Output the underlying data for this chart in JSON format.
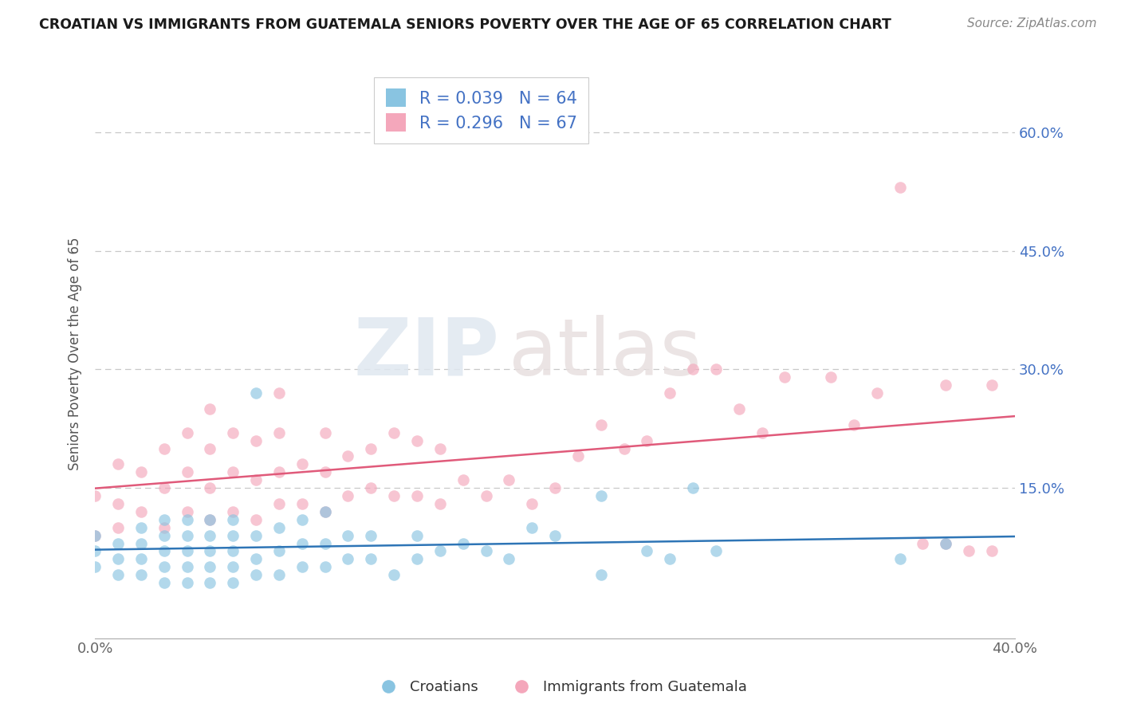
{
  "title": "CROATIAN VS IMMIGRANTS FROM GUATEMALA SENIORS POVERTY OVER THE AGE OF 65 CORRELATION CHART",
  "source": "Source: ZipAtlas.com",
  "ylabel": "Seniors Poverty Over the Age of 65",
  "ytick_vals": [
    0.0,
    0.15,
    0.3,
    0.45,
    0.6
  ],
  "ytick_labels": [
    "",
    "15.0%",
    "30.0%",
    "45.0%",
    "60.0%"
  ],
  "xlim": [
    0.0,
    0.4
  ],
  "ylim": [
    -0.04,
    0.68
  ],
  "blue_color": "#89c4e1",
  "pink_color": "#f4a7bb",
  "blue_line_color": "#2e75b6",
  "pink_line_color": "#e05a7a",
  "R_blue": 0.039,
  "N_blue": 64,
  "R_pink": 0.296,
  "N_pink": 67,
  "legend_label_blue": "Croatians",
  "legend_label_pink": "Immigrants from Guatemala",
  "watermark_top": "ZIP",
  "watermark_bot": "atlas",
  "background_color": "#ffffff",
  "blue_scatter_x": [
    0.0,
    0.0,
    0.0,
    0.01,
    0.01,
    0.01,
    0.02,
    0.02,
    0.02,
    0.02,
    0.03,
    0.03,
    0.03,
    0.03,
    0.03,
    0.04,
    0.04,
    0.04,
    0.04,
    0.04,
    0.05,
    0.05,
    0.05,
    0.05,
    0.05,
    0.06,
    0.06,
    0.06,
    0.06,
    0.06,
    0.07,
    0.07,
    0.07,
    0.07,
    0.08,
    0.08,
    0.08,
    0.09,
    0.09,
    0.09,
    0.1,
    0.1,
    0.1,
    0.11,
    0.11,
    0.12,
    0.12,
    0.13,
    0.14,
    0.14,
    0.15,
    0.16,
    0.17,
    0.18,
    0.19,
    0.2,
    0.22,
    0.22,
    0.24,
    0.25,
    0.26,
    0.27,
    0.35,
    0.37
  ],
  "blue_scatter_y": [
    0.05,
    0.07,
    0.09,
    0.04,
    0.06,
    0.08,
    0.04,
    0.06,
    0.08,
    0.1,
    0.03,
    0.05,
    0.07,
    0.09,
    0.11,
    0.03,
    0.05,
    0.07,
    0.09,
    0.11,
    0.03,
    0.05,
    0.07,
    0.09,
    0.11,
    0.03,
    0.05,
    0.07,
    0.09,
    0.11,
    0.04,
    0.06,
    0.09,
    0.27,
    0.04,
    0.07,
    0.1,
    0.05,
    0.08,
    0.11,
    0.05,
    0.08,
    0.12,
    0.06,
    0.09,
    0.06,
    0.09,
    0.04,
    0.06,
    0.09,
    0.07,
    0.08,
    0.07,
    0.06,
    0.1,
    0.09,
    0.04,
    0.14,
    0.07,
    0.06,
    0.15,
    0.07,
    0.06,
    0.08
  ],
  "pink_scatter_x": [
    0.0,
    0.0,
    0.01,
    0.01,
    0.01,
    0.02,
    0.02,
    0.03,
    0.03,
    0.03,
    0.04,
    0.04,
    0.04,
    0.05,
    0.05,
    0.05,
    0.05,
    0.06,
    0.06,
    0.06,
    0.07,
    0.07,
    0.07,
    0.08,
    0.08,
    0.08,
    0.08,
    0.09,
    0.09,
    0.1,
    0.1,
    0.1,
    0.11,
    0.11,
    0.12,
    0.12,
    0.13,
    0.13,
    0.14,
    0.14,
    0.15,
    0.15,
    0.16,
    0.17,
    0.18,
    0.19,
    0.2,
    0.21,
    0.22,
    0.23,
    0.24,
    0.25,
    0.26,
    0.27,
    0.28,
    0.29,
    0.3,
    0.32,
    0.33,
    0.34,
    0.35,
    0.36,
    0.37,
    0.37,
    0.38,
    0.39,
    0.39
  ],
  "pink_scatter_y": [
    0.09,
    0.14,
    0.1,
    0.13,
    0.18,
    0.12,
    0.17,
    0.1,
    0.15,
    0.2,
    0.12,
    0.17,
    0.22,
    0.11,
    0.15,
    0.2,
    0.25,
    0.12,
    0.17,
    0.22,
    0.11,
    0.16,
    0.21,
    0.13,
    0.17,
    0.22,
    0.27,
    0.13,
    0.18,
    0.12,
    0.17,
    0.22,
    0.14,
    0.19,
    0.15,
    0.2,
    0.14,
    0.22,
    0.14,
    0.21,
    0.13,
    0.2,
    0.16,
    0.14,
    0.16,
    0.13,
    0.15,
    0.19,
    0.23,
    0.2,
    0.21,
    0.27,
    0.3,
    0.3,
    0.25,
    0.22,
    0.29,
    0.29,
    0.23,
    0.27,
    0.53,
    0.08,
    0.08,
    0.28,
    0.07,
    0.07,
    0.28
  ]
}
